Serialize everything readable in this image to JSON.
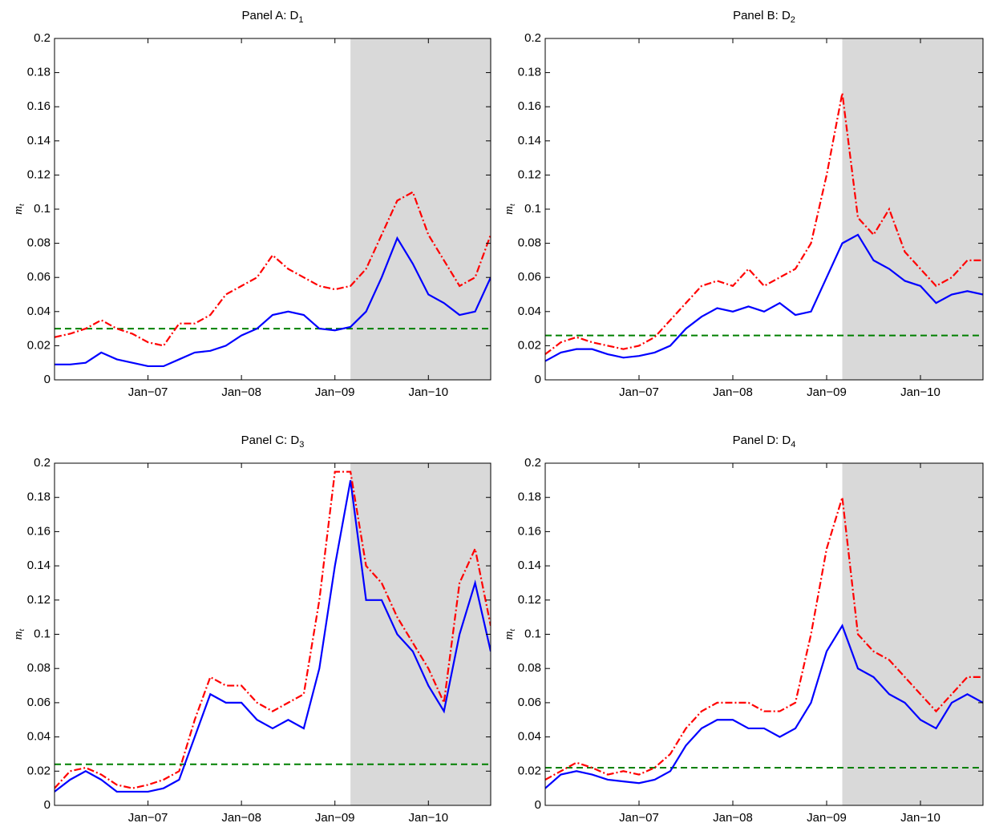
{
  "chart_data": [
    {
      "type": "line",
      "title": "Panel A: D",
      "title_subscript": "1",
      "ylabel": "m",
      "ylabel_subscript": "t",
      "x": [
        "2006-01",
        "2006-03",
        "2006-05",
        "2006-07",
        "2006-09",
        "2006-11",
        "2007-01",
        "2007-03",
        "2007-05",
        "2007-07",
        "2007-09",
        "2007-11",
        "2008-01",
        "2008-03",
        "2008-05",
        "2008-07",
        "2008-09",
        "2008-11",
        "2009-01",
        "2009-03",
        "2009-05",
        "2009-07",
        "2009-09",
        "2009-11",
        "2010-01",
        "2010-03",
        "2010-05",
        "2010-07",
        "2010-09"
      ],
      "series": [
        {
          "color": "#0000ff",
          "style": "solid",
          "values": [
            0.009,
            0.009,
            0.01,
            0.016,
            0.012,
            0.01,
            0.008,
            0.008,
            0.012,
            0.016,
            0.017,
            0.02,
            0.026,
            0.03,
            0.038,
            0.04,
            0.038,
            0.03,
            0.029,
            0.031,
            0.04,
            0.06,
            0.083,
            0.068,
            0.05,
            0.045,
            0.038,
            0.04,
            0.06
          ]
        },
        {
          "color": "#ff0000",
          "style": "dashdot",
          "values": [
            0.025,
            0.027,
            0.03,
            0.035,
            0.03,
            0.027,
            0.022,
            0.02,
            0.033,
            0.033,
            0.038,
            0.05,
            0.055,
            0.06,
            0.073,
            0.065,
            0.06,
            0.055,
            0.053,
            0.055,
            0.065,
            0.085,
            0.105,
            0.11,
            0.085,
            0.07,
            0.055,
            0.06,
            0.085
          ]
        }
      ],
      "hline": {
        "value": 0.03,
        "color": "#008000"
      },
      "shade": [
        "2009-03",
        "2010-09"
      ],
      "shade_color": "#d9d9d9",
      "xlim": [
        "2006-01",
        "2010-09"
      ],
      "xticks": [
        {
          "value": "2007-01",
          "label": "Jan−07"
        },
        {
          "value": "2008-01",
          "label": "Jan−08"
        },
        {
          "value": "2009-01",
          "label": "Jan−09"
        },
        {
          "value": "2010-01",
          "label": "Jan−10"
        }
      ],
      "ylim": [
        0,
        0.2
      ],
      "yticks": [
        0,
        0.02,
        0.04,
        0.06,
        0.08,
        0.1,
        0.12,
        0.14,
        0.16,
        0.18,
        0.2
      ]
    },
    {
      "type": "line",
      "title": "Panel B: D",
      "title_subscript": "2",
      "ylabel": "m",
      "ylabel_subscript": "t",
      "x": [
        "2006-01",
        "2006-03",
        "2006-05",
        "2006-07",
        "2006-09",
        "2006-11",
        "2007-01",
        "2007-03",
        "2007-05",
        "2007-07",
        "2007-09",
        "2007-11",
        "2008-01",
        "2008-03",
        "2008-05",
        "2008-07",
        "2008-09",
        "2008-11",
        "2009-01",
        "2009-03",
        "2009-05",
        "2009-07",
        "2009-09",
        "2009-11",
        "2010-01",
        "2010-03",
        "2010-05",
        "2010-07",
        "2010-09"
      ],
      "series": [
        {
          "color": "#0000ff",
          "style": "solid",
          "values": [
            0.011,
            0.016,
            0.018,
            0.018,
            0.015,
            0.013,
            0.014,
            0.016,
            0.02,
            0.03,
            0.037,
            0.042,
            0.04,
            0.043,
            0.04,
            0.045,
            0.038,
            0.04,
            0.06,
            0.08,
            0.085,
            0.07,
            0.065,
            0.058,
            0.055,
            0.045,
            0.05,
            0.052,
            0.05
          ]
        },
        {
          "color": "#ff0000",
          "style": "dashdot",
          "values": [
            0.015,
            0.022,
            0.025,
            0.022,
            0.02,
            0.018,
            0.02,
            0.025,
            0.035,
            0.045,
            0.055,
            0.058,
            0.055,
            0.065,
            0.055,
            0.06,
            0.065,
            0.08,
            0.12,
            0.168,
            0.095,
            0.085,
            0.1,
            0.075,
            0.065,
            0.055,
            0.06,
            0.07,
            0.07
          ]
        }
      ],
      "hline": {
        "value": 0.026,
        "color": "#008000"
      },
      "shade": [
        "2009-03",
        "2010-09"
      ],
      "shade_color": "#d9d9d9",
      "xlim": [
        "2006-01",
        "2010-09"
      ],
      "xticks": [
        {
          "value": "2007-01",
          "label": "Jan−07"
        },
        {
          "value": "2008-01",
          "label": "Jan−08"
        },
        {
          "value": "2009-01",
          "label": "Jan−09"
        },
        {
          "value": "2010-01",
          "label": "Jan−10"
        }
      ],
      "ylim": [
        0,
        0.2
      ],
      "yticks": [
        0,
        0.02,
        0.04,
        0.06,
        0.08,
        0.1,
        0.12,
        0.14,
        0.16,
        0.18,
        0.2
      ]
    },
    {
      "type": "line",
      "title": "Panel C: D",
      "title_subscript": "3",
      "ylabel": "m",
      "ylabel_subscript": "t",
      "x": [
        "2006-01",
        "2006-03",
        "2006-05",
        "2006-07",
        "2006-09",
        "2006-11",
        "2007-01",
        "2007-03",
        "2007-05",
        "2007-07",
        "2007-09",
        "2007-11",
        "2008-01",
        "2008-03",
        "2008-05",
        "2008-07",
        "2008-09",
        "2008-11",
        "2009-01",
        "2009-03",
        "2009-05",
        "2009-07",
        "2009-09",
        "2009-11",
        "2010-01",
        "2010-03",
        "2010-05",
        "2010-07",
        "2010-09"
      ],
      "series": [
        {
          "color": "#0000ff",
          "style": "solid",
          "values": [
            0.008,
            0.015,
            0.02,
            0.015,
            0.008,
            0.008,
            0.008,
            0.01,
            0.015,
            0.04,
            0.065,
            0.06,
            0.06,
            0.05,
            0.045,
            0.05,
            0.045,
            0.08,
            0.14,
            0.19,
            0.12,
            0.12,
            0.1,
            0.09,
            0.07,
            0.055,
            0.1,
            0.13,
            0.09
          ]
        },
        {
          "color": "#ff0000",
          "style": "dashdot",
          "values": [
            0.01,
            0.02,
            0.022,
            0.018,
            0.012,
            0.01,
            0.012,
            0.015,
            0.02,
            0.05,
            0.075,
            0.07,
            0.07,
            0.06,
            0.055,
            0.06,
            0.065,
            0.12,
            0.195,
            0.195,
            0.14,
            0.13,
            0.11,
            0.095,
            0.08,
            0.06,
            0.13,
            0.15,
            0.105
          ]
        }
      ],
      "hline": {
        "value": 0.024,
        "color": "#008000"
      },
      "shade": [
        "2009-03",
        "2010-09"
      ],
      "shade_color": "#d9d9d9",
      "xlim": [
        "2006-01",
        "2010-09"
      ],
      "xticks": [
        {
          "value": "2007-01",
          "label": "Jan−07"
        },
        {
          "value": "2008-01",
          "label": "Jan−08"
        },
        {
          "value": "2009-01",
          "label": "Jan−09"
        },
        {
          "value": "2010-01",
          "label": "Jan−10"
        }
      ],
      "ylim": [
        0,
        0.2
      ],
      "yticks": [
        0,
        0.02,
        0.04,
        0.06,
        0.08,
        0.1,
        0.12,
        0.14,
        0.16,
        0.18,
        0.2
      ]
    },
    {
      "type": "line",
      "title": "Panel D: D",
      "title_subscript": "4",
      "ylabel": "m",
      "ylabel_subscript": "t",
      "x": [
        "2006-01",
        "2006-03",
        "2006-05",
        "2006-07",
        "2006-09",
        "2006-11",
        "2007-01",
        "2007-03",
        "2007-05",
        "2007-07",
        "2007-09",
        "2007-11",
        "2008-01",
        "2008-03",
        "2008-05",
        "2008-07",
        "2008-09",
        "2008-11",
        "2009-01",
        "2009-03",
        "2009-05",
        "2009-07",
        "2009-09",
        "2009-11",
        "2010-01",
        "2010-03",
        "2010-05",
        "2010-07",
        "2010-09"
      ],
      "series": [
        {
          "color": "#0000ff",
          "style": "solid",
          "values": [
            0.01,
            0.018,
            0.02,
            0.018,
            0.015,
            0.014,
            0.013,
            0.015,
            0.02,
            0.035,
            0.045,
            0.05,
            0.05,
            0.045,
            0.045,
            0.04,
            0.045,
            0.06,
            0.09,
            0.105,
            0.08,
            0.075,
            0.065,
            0.06,
            0.05,
            0.045,
            0.06,
            0.065,
            0.06
          ]
        },
        {
          "color": "#ff0000",
          "style": "dashdot",
          "values": [
            0.015,
            0.02,
            0.025,
            0.022,
            0.018,
            0.02,
            0.018,
            0.022,
            0.03,
            0.045,
            0.055,
            0.06,
            0.06,
            0.06,
            0.055,
            0.055,
            0.06,
            0.1,
            0.15,
            0.18,
            0.1,
            0.09,
            0.085,
            0.075,
            0.065,
            0.055,
            0.065,
            0.075,
            0.075
          ]
        }
      ],
      "hline": {
        "value": 0.022,
        "color": "#008000"
      },
      "shade": [
        "2009-03",
        "2010-09"
      ],
      "shade_color": "#d9d9d9",
      "xlim": [
        "2006-01",
        "2010-09"
      ],
      "xticks": [
        {
          "value": "2007-01",
          "label": "Jan−07"
        },
        {
          "value": "2008-01",
          "label": "Jan−08"
        },
        {
          "value": "2009-01",
          "label": "Jan−09"
        },
        {
          "value": "2010-01",
          "label": "Jan−10"
        }
      ],
      "ylim": [
        0,
        0.2
      ],
      "yticks": [
        0,
        0.02,
        0.04,
        0.06,
        0.08,
        0.1,
        0.12,
        0.14,
        0.16,
        0.18,
        0.2
      ]
    }
  ]
}
